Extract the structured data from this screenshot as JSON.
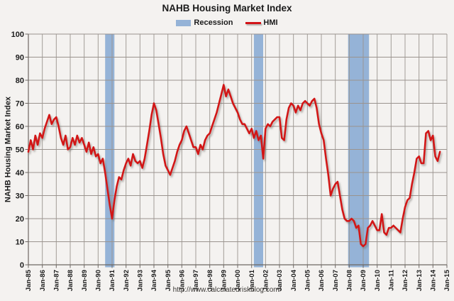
{
  "chart_data": {
    "type": "line",
    "title": "NAHB Housing Market Index",
    "xlabel": "",
    "ylabel": "NAHB Housing Market Index",
    "ylim": [
      0,
      100
    ],
    "y_tick_step": 10,
    "grid": true,
    "legend_position": "top-center",
    "y_tick_labels": [
      "0",
      "10",
      "20",
      "30",
      "40",
      "50",
      "60",
      "70",
      "80",
      "90",
      "100"
    ],
    "x_tick_labels": [
      "Jan-85",
      "Jan-86",
      "Jan-87",
      "Jan-88",
      "Jan-89",
      "Jan-90",
      "Jan-91",
      "Jan-92",
      "Jan-93",
      "Jan-94",
      "Jan-95",
      "Jan-96",
      "Jan-97",
      "Jan-98",
      "Jan-99",
      "Jan-00",
      "Jan-01",
      "Jan-02",
      "Jan-03",
      "Jan-04",
      "Jan-05",
      "Jan-06",
      "Jan-07",
      "Jan-08",
      "Jan-09",
      "Jan-10",
      "Jan-11",
      "Jan-12",
      "Jan-13",
      "Jan-14",
      "Jan-15"
    ],
    "x_start": "1985-01",
    "x_interval_months": 2,
    "legend": [
      {
        "label": "Recession",
        "color": "#95b3d7",
        "marker": "box"
      },
      {
        "label": "HMI",
        "color": "#d21418",
        "marker": "line"
      }
    ],
    "recession_color": "#95b3d7",
    "recessions": [
      {
        "start": "1990-07",
        "end": "1991-03"
      },
      {
        "start": "2001-03",
        "end": "2001-11"
      },
      {
        "start": "2007-12",
        "end": "2009-06"
      }
    ],
    "series": [
      {
        "name": "HMI",
        "color": "#d21418",
        "values": [
          49,
          54,
          50,
          56,
          52,
          57,
          55,
          59,
          62,
          65,
          61,
          63,
          64,
          60,
          55,
          52,
          56,
          50,
          51,
          55,
          52,
          56,
          53,
          55,
          52,
          49,
          53,
          48,
          51,
          47,
          48,
          44,
          46,
          40,
          33,
          26,
          20,
          28,
          34,
          38,
          37,
          41,
          44,
          46,
          43,
          48,
          45,
          44,
          45,
          42,
          46,
          52,
          58,
          65,
          70,
          67,
          61,
          55,
          48,
          43,
          41,
          39,
          42,
          45,
          49,
          52,
          54,
          58,
          60,
          57,
          54,
          51,
          51,
          48,
          52,
          50,
          54,
          56,
          57,
          60,
          63,
          66,
          70,
          74,
          78,
          73,
          76,
          73,
          70,
          68,
          66,
          63,
          61,
          61,
          59,
          57,
          59,
          55,
          58,
          54,
          56,
          46,
          59,
          61,
          60,
          62,
          63,
          64,
          64,
          55,
          54,
          63,
          68,
          70,
          69,
          66,
          69,
          67,
          70,
          71,
          70,
          69,
          71,
          72,
          68,
          61,
          57,
          54,
          46,
          39,
          30,
          33,
          35,
          36,
          30,
          24,
          20,
          19,
          19,
          20,
          19,
          16,
          17,
          9,
          8,
          9,
          16,
          17,
          19,
          17,
          15,
          15,
          22,
          14,
          13,
          16,
          16,
          17,
          16,
          15,
          14,
          20,
          25,
          28,
          29,
          35,
          40,
          46,
          47,
          44,
          44,
          57,
          58,
          54,
          56,
          47,
          45,
          49
        ]
      }
    ]
  },
  "footer": {
    "url": "http://www.calculatedriskblog.com/"
  },
  "colors": {
    "background": "#f4f2f0",
    "gridline": "#9a938e",
    "axis": "#6e6863",
    "text": "#1b1b1b"
  }
}
